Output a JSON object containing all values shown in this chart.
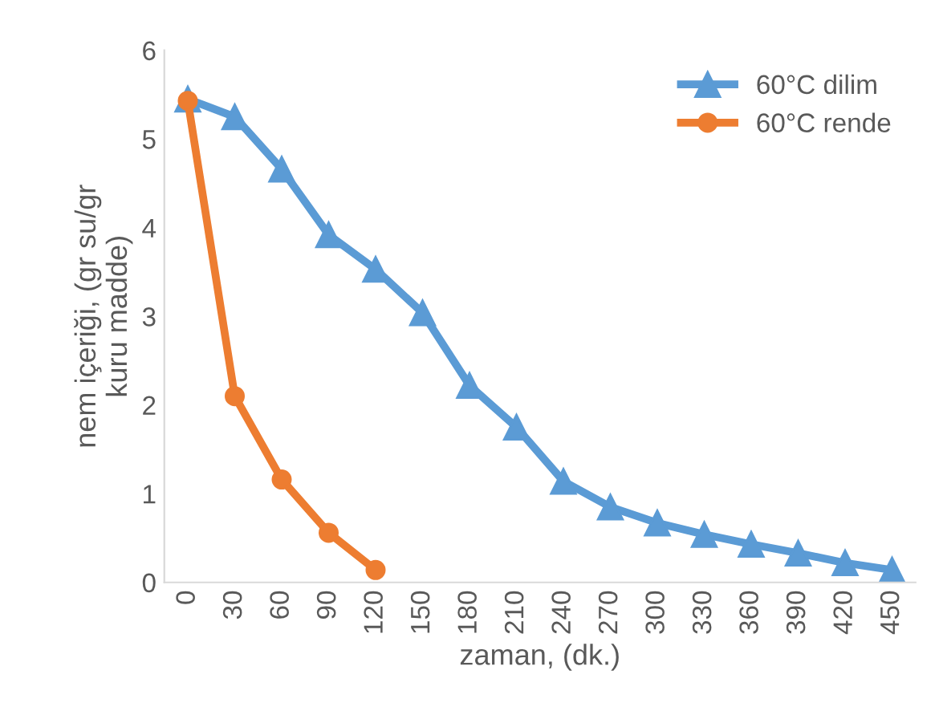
{
  "chart_data": {
    "type": "line",
    "xlabel": "zaman, (dk.)",
    "ylabel": "nem içeriği, (gr su/gr kuru madde)",
    "categories": [
      "0",
      "30",
      "60",
      "90",
      "120",
      "150",
      "180",
      "210",
      "240",
      "270",
      "300",
      "330",
      "360",
      "390",
      "420",
      "450"
    ],
    "series": [
      {
        "name": "60°C dilim",
        "color": "#5b9bd5",
        "marker": "triangle",
        "values": [
          5.45,
          5.25,
          4.66,
          3.92,
          3.53,
          3.04,
          2.22,
          1.75,
          1.14,
          0.85,
          0.67,
          0.54,
          0.43,
          0.33,
          0.22,
          0.14
        ]
      },
      {
        "name": "60°C rende",
        "color": "#ed7d31",
        "marker": "circle",
        "values": [
          5.43,
          2.1,
          1.16,
          0.56,
          0.14,
          null,
          null,
          null,
          null,
          null,
          null,
          null,
          null,
          null,
          null,
          null
        ]
      }
    ],
    "ylim": [
      0,
      6
    ],
    "yticks": [
      0,
      1,
      2,
      3,
      4,
      5,
      6
    ],
    "grid": false,
    "legend": "top right",
    "line_style": "solid"
  }
}
